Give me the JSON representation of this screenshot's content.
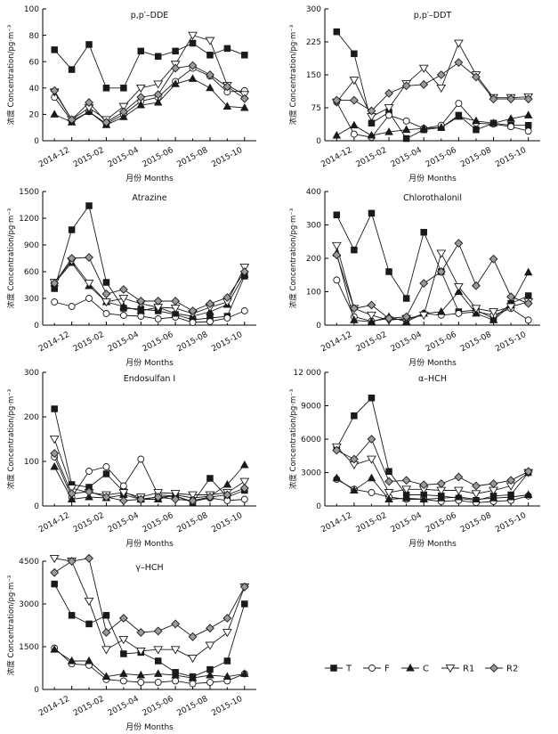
{
  "chart_data": [
    {
      "type": "line",
      "title": "p,p′–DDE",
      "xlabel": "月份 Months",
      "ylabel": "浓度 Concentration/pg·m⁻³",
      "xticks": [
        "2014-12",
        "2015-02",
        "2015-04",
        "2015-06",
        "2015-08",
        "2015-10"
      ],
      "yticks": [
        "0",
        "20",
        "40",
        "60",
        "80",
        "100"
      ],
      "ylim": [
        0,
        100
      ],
      "x": [
        "2014-11",
        "2014-12",
        "2015-01",
        "2015-02",
        "2015-03",
        "2015-04",
        "2015-05",
        "2015-06",
        "2015-07",
        "2015-08",
        "2015-09",
        "2015-10"
      ],
      "series": [
        {
          "name": "T",
          "values": [
            69,
            54,
            73,
            40,
            40,
            68,
            64,
            68,
            74,
            65,
            70,
            65
          ]
        },
        {
          "name": "F",
          "values": [
            33,
            15,
            22,
            13,
            20,
            30,
            33,
            45,
            55,
            49,
            37,
            38
          ]
        },
        {
          "name": "C",
          "values": [
            20,
            14,
            22,
            12,
            18,
            27,
            29,
            43,
            47,
            40,
            26,
            25
          ]
        },
        {
          "name": "R1",
          "values": [
            37,
            16,
            25,
            16,
            26,
            40,
            43,
            58,
            80,
            76,
            42,
            35
          ]
        },
        {
          "name": "R2",
          "values": [
            38,
            16,
            29,
            14,
            22,
            33,
            35,
            55,
            57,
            50,
            41,
            32
          ]
        }
      ]
    },
    {
      "type": "line",
      "title": "p,p′–DDT",
      "xlabel": "月份 Months",
      "ylabel": "浓度 Concentration/pg·m⁻³",
      "xticks": [
        "2014-12",
        "2015-02",
        "2015-04",
        "2015-06",
        "2015-08",
        "2015-10"
      ],
      "yticks": [
        "0",
        "75",
        "150",
        "225",
        "300"
      ],
      "ylim": [
        0,
        300
      ],
      "x": [
        "2014-11",
        "2014-12",
        "2015-01",
        "2015-02",
        "2015-03",
        "2015-04",
        "2015-05",
        "2015-06",
        "2015-07",
        "2015-08",
        "2015-09",
        "2015-10"
      ],
      "series": [
        {
          "name": "T",
          "values": [
            248,
            198,
            40,
            65,
            5,
            25,
            30,
            58,
            25,
            40,
            35,
            35
          ]
        },
        {
          "name": "F",
          "values": [
            88,
            15,
            8,
            58,
            45,
            28,
            35,
            85,
            40,
            38,
            32,
            22
          ]
        },
        {
          "name": "C",
          "values": [
            12,
            35,
            12,
            20,
            25,
            28,
            30,
            55,
            45,
            40,
            50,
            58
          ]
        },
        {
          "name": "R1",
          "values": [
            88,
            138,
            55,
            75,
            130,
            165,
            120,
            222,
            150,
            98,
            98,
            100
          ]
        },
        {
          "name": "R2",
          "values": [
            92,
            92,
            68,
            108,
            125,
            128,
            150,
            178,
            145,
            95,
            95,
            95
          ]
        }
      ]
    },
    {
      "type": "line",
      "title": "Atrazine",
      "xlabel": "月份 Months",
      "ylabel": "浓度 Concentration/pg·m⁻³",
      "xticks": [
        "2014-12",
        "2015-02",
        "2015-04",
        "2015-06",
        "2015-08",
        "2015-10"
      ],
      "yticks": [
        "0",
        "300",
        "600",
        "900",
        "1200",
        "1500"
      ],
      "ylim": [
        0,
        1500
      ],
      "x": [
        "2014-11",
        "2014-12",
        "2015-01",
        "2015-02",
        "2015-03",
        "2015-04",
        "2015-05",
        "2015-06",
        "2015-07",
        "2015-08",
        "2015-09",
        "2015-10"
      ],
      "series": [
        {
          "name": "T",
          "values": [
            410,
            1070,
            1340,
            480,
            190,
            180,
            160,
            120,
            60,
            80,
            100,
            550
          ]
        },
        {
          "name": "F",
          "values": [
            260,
            210,
            300,
            130,
            110,
            100,
            70,
            90,
            30,
            40,
            80,
            160
          ]
        },
        {
          "name": "C",
          "values": [
            470,
            700,
            440,
            260,
            210,
            160,
            200,
            130,
            100,
            150,
            230,
            570
          ]
        },
        {
          "name": "R1",
          "values": [
            480,
            720,
            470,
            260,
            300,
            240,
            200,
            190,
            130,
            200,
            260,
            650
          ]
        },
        {
          "name": "R2",
          "values": [
            470,
            750,
            760,
            350,
            400,
            270,
            270,
            270,
            160,
            240,
            310,
            600
          ]
        }
      ]
    },
    {
      "type": "line",
      "title": "Chlorothalonil",
      "xlabel": "月份 Months",
      "ylabel": "浓度 Concentration/pg·m⁻³",
      "xticks": [
        "2014-12",
        "2015-02",
        "2015-04",
        "2015-06",
        "2015-08",
        "2015-10"
      ],
      "yticks": [
        "0",
        "100",
        "200",
        "300",
        "400"
      ],
      "ylim": [
        0,
        400
      ],
      "x": [
        "2014-11",
        "2014-12",
        "2015-01",
        "2015-02",
        "2015-03",
        "2015-04",
        "2015-05",
        "2015-06",
        "2015-07",
        "2015-08",
        "2015-09",
        "2015-10"
      ],
      "series": [
        {
          "name": "T",
          "values": [
            330,
            225,
            335,
            160,
            80,
            278,
            160,
            40,
            45,
            20,
            65,
            88
          ]
        },
        {
          "name": "F",
          "values": [
            135,
            25,
            12,
            20,
            15,
            35,
            30,
            35,
            40,
            30,
            50,
            15
          ]
        },
        {
          "name": "C",
          "values": [
            215,
            15,
            10,
            25,
            10,
            35,
            40,
            100,
            35,
            15,
            60,
            158
          ]
        },
        {
          "name": "R1",
          "values": [
            238,
            50,
            30,
            15,
            20,
            30,
            215,
            115,
            50,
            40,
            55,
            70
          ]
        },
        {
          "name": "R2",
          "values": [
            210,
            50,
            60,
            20,
            25,
            125,
            160,
            245,
            118,
            198,
            85,
            65
          ]
        }
      ]
    },
    {
      "type": "line",
      "title": "Endosulfan Ⅰ",
      "xlabel": "月份 Months",
      "ylabel": "浓度 Concentration/pg·m⁻³",
      "xticks": [
        "2014-12",
        "2015-02",
        "2015-04",
        "2015-06",
        "2015-08",
        "2015-10"
      ],
      "yticks": [
        "0",
        "100",
        "200",
        "300"
      ],
      "ylim": [
        0,
        300
      ],
      "x": [
        "2014-11",
        "2014-12",
        "2015-01",
        "2015-02",
        "2015-03",
        "2015-04",
        "2015-05",
        "2015-06",
        "2015-07",
        "2015-08",
        "2015-09",
        "2015-10"
      ],
      "series": [
        {
          "name": "T",
          "values": [
            218,
            48,
            42,
            72,
            32,
            15,
            20,
            22,
            8,
            62,
            20,
            35
          ]
        },
        {
          "name": "F",
          "values": [
            110,
            20,
            78,
            88,
            45,
            105,
            25,
            22,
            10,
            18,
            12,
            15
          ]
        },
        {
          "name": "C",
          "values": [
            88,
            15,
            20,
            18,
            25,
            15,
            15,
            25,
            18,
            22,
            48,
            92
          ]
        },
        {
          "name": "R1",
          "values": [
            150,
            40,
            30,
            25,
            30,
            20,
            30,
            28,
            25,
            25,
            30,
            55
          ]
        },
        {
          "name": "R2",
          "values": [
            118,
            28,
            32,
            20,
            12,
            15,
            20,
            15,
            12,
            20,
            25,
            40
          ]
        }
      ]
    },
    {
      "type": "line",
      "title": "α–HCH",
      "xlabel": "月份 Months",
      "ylabel": "浓度 Concentration/pg·m⁻³",
      "xticks": [
        "2014-12",
        "2015-02",
        "2015-04",
        "2015-06",
        "2015-08",
        "2015-10"
      ],
      "yticks": [
        "0",
        "3000",
        "6000",
        "9000",
        "12 000"
      ],
      "ylim": [
        0,
        12000
      ],
      "x": [
        "2014-11",
        "2014-12",
        "2015-01",
        "2015-02",
        "2015-03",
        "2015-04",
        "2015-05",
        "2015-06",
        "2015-07",
        "2015-08",
        "2015-09",
        "2015-10"
      ],
      "series": [
        {
          "name": "T",
          "values": [
            5200,
            8100,
            9700,
            3100,
            1000,
            1000,
            900,
            700,
            500,
            900,
            1000,
            3000
          ]
        },
        {
          "name": "F",
          "values": [
            2400,
            1500,
            1200,
            800,
            600,
            600,
            400,
            500,
            300,
            400,
            500,
            900
          ]
        },
        {
          "name": "C",
          "values": [
            2500,
            1400,
            2500,
            600,
            700,
            600,
            700,
            800,
            600,
            700,
            800,
            1000
          ]
        },
        {
          "name": "R1",
          "values": [
            5300,
            3700,
            4200,
            1200,
            1500,
            1500,
            1400,
            1400,
            1100,
            1400,
            1800,
            3000
          ]
        },
        {
          "name": "R2",
          "values": [
            5000,
            4200,
            6000,
            2200,
            2300,
            1900,
            2000,
            2600,
            1800,
            2000,
            2300,
            3100
          ]
        }
      ]
    },
    {
      "type": "line",
      "title": "γ–HCH",
      "xlabel": "月份 Months",
      "ylabel": "浓度 Concentration/pg·m⁻³",
      "xticks": [
        "2014-12",
        "2015-02",
        "2015-04",
        "2015-06",
        "2015-08",
        "2015-10"
      ],
      "yticks": [
        "0",
        "1500",
        "3000",
        "4500"
      ],
      "ylim": [
        0,
        4500
      ],
      "x": [
        "2014-11",
        "2014-12",
        "2015-01",
        "2015-02",
        "2015-03",
        "2015-04",
        "2015-05",
        "2015-06",
        "2015-07",
        "2015-08",
        "2015-09",
        "2015-10"
      ],
      "series": [
        {
          "name": "T",
          "values": [
            3700,
            2600,
            2300,
            2600,
            1250,
            1300,
            1000,
            600,
            450,
            700,
            1000,
            3000
          ]
        },
        {
          "name": "F",
          "values": [
            1450,
            900,
            850,
            350,
            300,
            250,
            250,
            300,
            200,
            250,
            300,
            550
          ]
        },
        {
          "name": "C",
          "values": [
            1400,
            1000,
            1000,
            450,
            550,
            500,
            550,
            500,
            400,
            500,
            450,
            550
          ]
        },
        {
          "name": "R1",
          "values": [
            4600,
            4500,
            3100,
            1400,
            1750,
            1350,
            1400,
            1400,
            1100,
            1550,
            2000,
            3600
          ]
        },
        {
          "name": "R2",
          "values": [
            4100,
            4500,
            4600,
            2000,
            2500,
            2000,
            2050,
            2300,
            1850,
            2150,
            2500,
            3600
          ]
        }
      ]
    }
  ],
  "legend": [
    {
      "name": "T",
      "marker": "square-filled"
    },
    {
      "name": "F",
      "marker": "circle-open"
    },
    {
      "name": "C",
      "marker": "triangle-filled"
    },
    {
      "name": "R1",
      "marker": "triangle-down-open"
    },
    {
      "name": "R2",
      "marker": "diamond-gray"
    }
  ]
}
